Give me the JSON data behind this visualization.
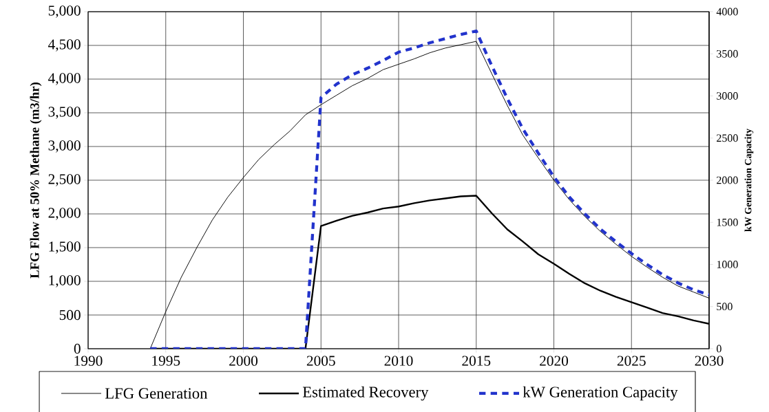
{
  "chart_data": {
    "type": "line",
    "xlabel": null,
    "ylabel": "LFG Flow at 50% Methane (m3/hr)",
    "y2label": "kW Generation Capacity",
    "x": [
      1994,
      1995,
      1996,
      1997,
      1998,
      1999,
      2000,
      2001,
      2002,
      2003,
      2004,
      2005,
      2006,
      2007,
      2008,
      2009,
      2010,
      2011,
      2012,
      2013,
      2014,
      2015,
      2016,
      2017,
      2018,
      2019,
      2020,
      2021,
      2022,
      2023,
      2024,
      2025,
      2026,
      2027,
      2028,
      2029,
      2030
    ],
    "series": [
      {
        "name": "LFG Generation",
        "color": "#000000",
        "line_style": "solid",
        "values": [
          0,
          550,
          1060,
          1500,
          1910,
          2250,
          2540,
          2810,
          3030,
          3230,
          3470,
          3620,
          3760,
          3900,
          4010,
          4140,
          4220,
          4300,
          4390,
          4460,
          4510,
          4560,
          4080,
          3610,
          3170,
          2830,
          2500,
          2210,
          1960,
          1740,
          1550,
          1370,
          1210,
          1060,
          930,
          840,
          750
        ]
      },
      {
        "name": "Estimated Recovery",
        "color": "#000000",
        "line_style": "solid",
        "values": [
          0,
          0,
          0,
          0,
          0,
          0,
          0,
          0,
          0,
          0,
          0,
          1820,
          1900,
          1970,
          2020,
          2080,
          2110,
          2160,
          2200,
          2230,
          2260,
          2270,
          2010,
          1770,
          1590,
          1400,
          1260,
          1110,
          970,
          860,
          770,
          690,
          610,
          530,
          480,
          420,
          370
        ]
      },
      {
        "name": "kW Generation Capacity",
        "color": "#2233cc",
        "line_style": "dashed",
        "axis": "y2",
        "values": [
          0,
          0,
          0,
          0,
          0,
          0,
          0,
          0,
          0,
          0,
          0,
          2980,
          3140,
          3250,
          3330,
          3420,
          3520,
          3570,
          3630,
          3680,
          3730,
          3770,
          3360,
          2970,
          2610,
          2320,
          2040,
          1800,
          1600,
          1420,
          1270,
          1130,
          1000,
          880,
          780,
          700,
          640
        ]
      }
    ],
    "xlim": [
      1990,
      2030
    ],
    "xticks": [
      1990,
      1995,
      2000,
      2005,
      2010,
      2015,
      2020,
      2025,
      2030
    ],
    "ylim": [
      0,
      5000
    ],
    "yticks": [
      {
        "value": 0,
        "label": "0"
      },
      {
        "value": 500,
        "label": "500"
      },
      {
        "value": 1000,
        "label": "1,000"
      },
      {
        "value": 1500,
        "label": "1,500"
      },
      {
        "value": 2000,
        "label": "2,000"
      },
      {
        "value": 2500,
        "label": "2,500"
      },
      {
        "value": 3000,
        "label": "3,000"
      },
      {
        "value": 3500,
        "label": "3,500"
      },
      {
        "value": 4000,
        "label": "4,000"
      },
      {
        "value": 4500,
        "label": "4,500"
      },
      {
        "value": 5000,
        "label": "5,000"
      }
    ],
    "y2lim": [
      0,
      4000
    ],
    "y2ticks": [
      0,
      500,
      1000,
      1500,
      2000,
      2500,
      3000,
      3500,
      4000
    ],
    "grid": true,
    "legend": "bottom",
    "marker": "none"
  }
}
